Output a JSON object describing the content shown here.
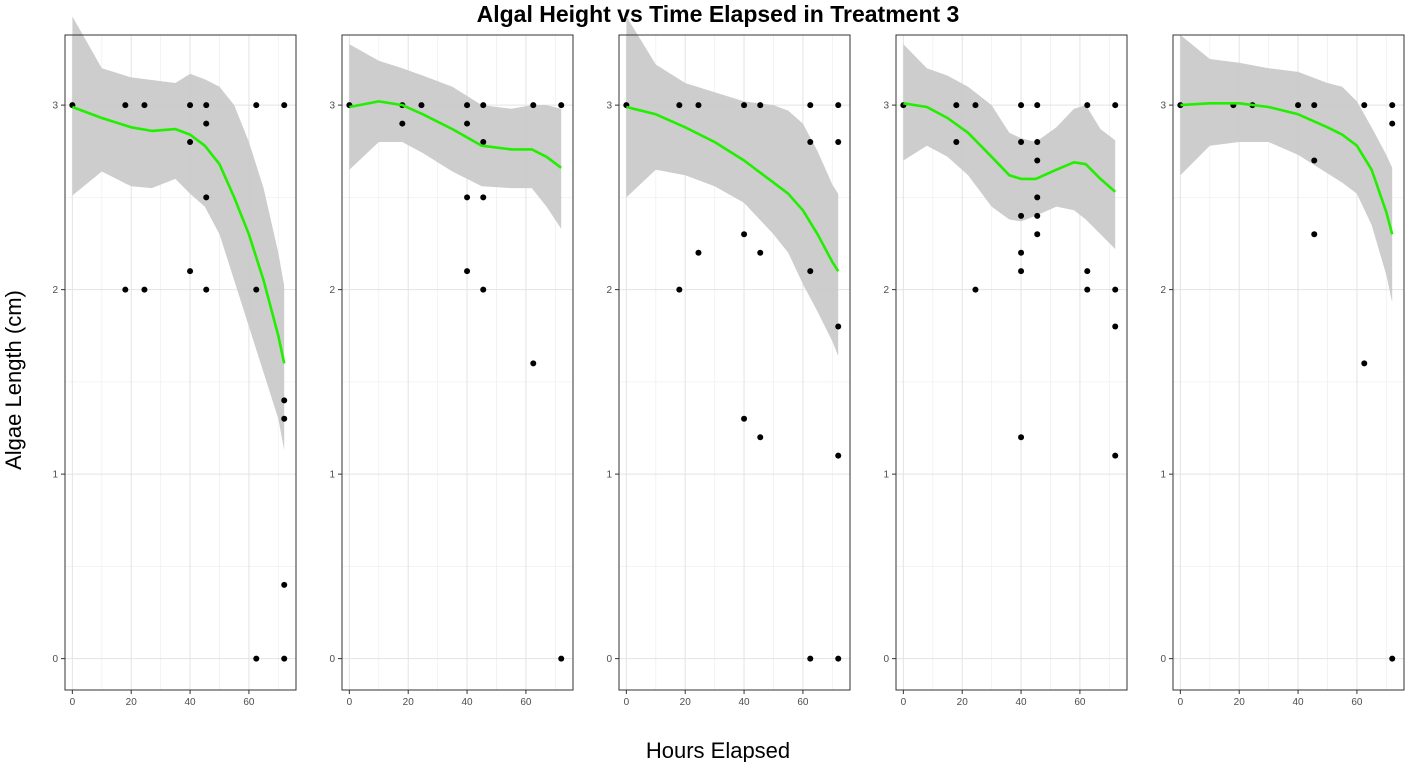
{
  "chart_data": {
    "type": "scatter",
    "title": "Algal Height vs Time Elapsed in Treatment 3",
    "xlabel": "Hours Elapsed",
    "ylabel": "Algae Length (cm)",
    "xlim": [
      -2.5,
      76
    ],
    "ylim": [
      -0.17,
      3.38
    ],
    "x_ticks": [
      0,
      20,
      40,
      60
    ],
    "y_ticks": [
      0,
      1,
      2,
      3
    ],
    "grid": true,
    "smooth_color": "#22ee00",
    "band_color": "#c8c8c8",
    "point_color": "#000000",
    "panels": [
      {
        "points": [
          [
            0,
            3
          ],
          [
            18,
            3
          ],
          [
            18,
            2
          ],
          [
            24.5,
            3
          ],
          [
            24.5,
            2
          ],
          [
            40,
            3
          ],
          [
            40,
            2.8
          ],
          [
            40,
            2.1
          ],
          [
            45.5,
            3
          ],
          [
            45.5,
            2.9
          ],
          [
            45.5,
            2.5
          ],
          [
            45.5,
            2
          ],
          [
            62.5,
            3
          ],
          [
            62.5,
            2
          ],
          [
            62.5,
            0
          ],
          [
            72,
            3
          ],
          [
            72,
            1.4
          ],
          [
            72,
            1.3
          ],
          [
            72,
            0.4
          ],
          [
            72,
            0
          ]
        ],
        "smooth": [
          [
            0,
            2.99
          ],
          [
            10,
            2.93
          ],
          [
            20,
            2.88
          ],
          [
            27,
            2.86
          ],
          [
            35,
            2.87
          ],
          [
            40,
            2.84
          ],
          [
            45,
            2.78
          ],
          [
            50,
            2.68
          ],
          [
            55,
            2.5
          ],
          [
            60,
            2.3
          ],
          [
            65,
            2.05
          ],
          [
            70,
            1.75
          ],
          [
            72,
            1.6
          ]
        ],
        "band_upper": [
          [
            0,
            3.48
          ],
          [
            10,
            3.2
          ],
          [
            20,
            3.15
          ],
          [
            30,
            3.13
          ],
          [
            35,
            3.12
          ],
          [
            40,
            3.17
          ],
          [
            45,
            3.14
          ],
          [
            50,
            3.1
          ],
          [
            55,
            3.0
          ],
          [
            60,
            2.8
          ],
          [
            65,
            2.55
          ],
          [
            70,
            2.2
          ],
          [
            72,
            2.02
          ]
        ],
        "band_lower": [
          [
            0,
            2.51
          ],
          [
            10,
            2.64
          ],
          [
            20,
            2.56
          ],
          [
            27,
            2.55
          ],
          [
            35,
            2.6
          ],
          [
            40,
            2.52
          ],
          [
            45,
            2.45
          ],
          [
            50,
            2.3
          ],
          [
            55,
            2.05
          ],
          [
            60,
            1.8
          ],
          [
            65,
            1.55
          ],
          [
            70,
            1.3
          ],
          [
            72,
            1.13
          ]
        ]
      },
      {
        "points": [
          [
            0,
            3
          ],
          [
            18,
            3
          ],
          [
            18,
            2.9
          ],
          [
            24.5,
            3
          ],
          [
            40,
            3
          ],
          [
            40,
            2.9
          ],
          [
            40,
            2.5
          ],
          [
            40,
            2.1
          ],
          [
            45.5,
            3
          ],
          [
            45.5,
            2.8
          ],
          [
            45.5,
            2.5
          ],
          [
            45.5,
            2
          ],
          [
            62.5,
            3
          ],
          [
            62.5,
            1.6
          ],
          [
            72,
            3
          ],
          [
            72,
            0
          ]
        ],
        "smooth": [
          [
            0,
            2.99
          ],
          [
            10,
            3.02
          ],
          [
            18,
            3.0
          ],
          [
            25,
            2.95
          ],
          [
            35,
            2.87
          ],
          [
            45,
            2.78
          ],
          [
            55,
            2.76
          ],
          [
            62,
            2.76
          ],
          [
            67,
            2.72
          ],
          [
            72,
            2.66
          ]
        ],
        "band_upper": [
          [
            0,
            3.33
          ],
          [
            10,
            3.24
          ],
          [
            18,
            3.2
          ],
          [
            25,
            3.16
          ],
          [
            35,
            3.1
          ],
          [
            45,
            3.0
          ],
          [
            55,
            2.98
          ],
          [
            62,
            3.0
          ],
          [
            67,
            3.0
          ],
          [
            72,
            2.98
          ]
        ],
        "band_lower": [
          [
            0,
            2.65
          ],
          [
            10,
            2.8
          ],
          [
            18,
            2.8
          ],
          [
            25,
            2.74
          ],
          [
            35,
            2.64
          ],
          [
            45,
            2.56
          ],
          [
            55,
            2.55
          ],
          [
            62,
            2.55
          ],
          [
            67,
            2.45
          ],
          [
            72,
            2.33
          ]
        ]
      },
      {
        "points": [
          [
            0,
            3
          ],
          [
            18,
            3
          ],
          [
            18,
            2
          ],
          [
            24.5,
            3
          ],
          [
            24.5,
            2.2
          ],
          [
            40,
            3
          ],
          [
            40,
            2.3
          ],
          [
            40,
            1.3
          ],
          [
            45.5,
            3
          ],
          [
            45.5,
            2.2
          ],
          [
            45.5,
            1.2
          ],
          [
            62.5,
            3
          ],
          [
            62.5,
            2.8
          ],
          [
            62.5,
            2.1
          ],
          [
            62.5,
            0
          ],
          [
            72,
            3
          ],
          [
            72,
            2.8
          ],
          [
            72,
            1.8
          ],
          [
            72,
            1.1
          ],
          [
            72,
            0
          ]
        ],
        "smooth": [
          [
            0,
            2.99
          ],
          [
            10,
            2.95
          ],
          [
            20,
            2.88
          ],
          [
            30,
            2.8
          ],
          [
            40,
            2.7
          ],
          [
            50,
            2.58
          ],
          [
            55,
            2.52
          ],
          [
            60,
            2.43
          ],
          [
            65,
            2.3
          ],
          [
            70,
            2.15
          ],
          [
            72,
            2.1
          ]
        ],
        "band_upper": [
          [
            0,
            3.48
          ],
          [
            10,
            3.22
          ],
          [
            20,
            3.12
          ],
          [
            30,
            3.07
          ],
          [
            40,
            3.02
          ],
          [
            50,
            3.0
          ],
          [
            55,
            2.97
          ],
          [
            60,
            2.9
          ],
          [
            65,
            2.75
          ],
          [
            70,
            2.57
          ],
          [
            72,
            2.52
          ]
        ],
        "band_lower": [
          [
            0,
            2.5
          ],
          [
            10,
            2.65
          ],
          [
            20,
            2.62
          ],
          [
            30,
            2.56
          ],
          [
            40,
            2.47
          ],
          [
            50,
            2.3
          ],
          [
            55,
            2.2
          ],
          [
            60,
            2.03
          ],
          [
            65,
            1.88
          ],
          [
            70,
            1.72
          ],
          [
            72,
            1.64
          ]
        ]
      },
      {
        "points": [
          [
            0,
            3
          ],
          [
            18,
            3
          ],
          [
            18,
            2.8
          ],
          [
            24.5,
            3
          ],
          [
            24.5,
            2
          ],
          [
            40,
            3
          ],
          [
            40,
            2.8
          ],
          [
            40,
            2.4
          ],
          [
            40,
            2.2
          ],
          [
            40,
            2.1
          ],
          [
            40,
            1.2
          ],
          [
            45.5,
            3
          ],
          [
            45.5,
            2.8
          ],
          [
            45.5,
            2.7
          ],
          [
            45.5,
            2.5
          ],
          [
            45.5,
            2.4
          ],
          [
            45.5,
            2.3
          ],
          [
            62.5,
            3
          ],
          [
            62.5,
            2.1
          ],
          [
            62.5,
            2
          ],
          [
            72,
            3
          ],
          [
            72,
            2
          ],
          [
            72,
            1.8
          ],
          [
            72,
            1.1
          ]
        ],
        "smooth": [
          [
            0,
            3.01
          ],
          [
            8,
            2.99
          ],
          [
            15,
            2.93
          ],
          [
            22,
            2.85
          ],
          [
            30,
            2.72
          ],
          [
            36,
            2.62
          ],
          [
            40,
            2.6
          ],
          [
            45,
            2.6
          ],
          [
            52,
            2.65
          ],
          [
            58,
            2.69
          ],
          [
            62,
            2.68
          ],
          [
            67,
            2.6
          ],
          [
            72,
            2.53
          ]
        ],
        "band_upper": [
          [
            0,
            3.33
          ],
          [
            8,
            3.2
          ],
          [
            15,
            3.16
          ],
          [
            22,
            3.1
          ],
          [
            30,
            3.0
          ],
          [
            36,
            2.85
          ],
          [
            40,
            2.82
          ],
          [
            45,
            2.8
          ],
          [
            52,
            2.88
          ],
          [
            58,
            2.98
          ],
          [
            62,
            3.0
          ],
          [
            67,
            2.87
          ],
          [
            72,
            2.81
          ]
        ],
        "band_lower": [
          [
            0,
            2.7
          ],
          [
            8,
            2.78
          ],
          [
            15,
            2.72
          ],
          [
            22,
            2.62
          ],
          [
            30,
            2.45
          ],
          [
            36,
            2.38
          ],
          [
            40,
            2.37
          ],
          [
            45,
            2.4
          ],
          [
            52,
            2.45
          ],
          [
            58,
            2.43
          ],
          [
            62,
            2.38
          ],
          [
            67,
            2.3
          ],
          [
            72,
            2.22
          ]
        ]
      },
      {
        "points": [
          [
            0,
            3
          ],
          [
            18,
            3
          ],
          [
            24.5,
            3
          ],
          [
            40,
            3
          ],
          [
            45.5,
            3
          ],
          [
            45.5,
            2.7
          ],
          [
            45.5,
            2.3
          ],
          [
            62.5,
            3
          ],
          [
            62.5,
            1.6
          ],
          [
            72,
            3
          ],
          [
            72,
            2.9
          ],
          [
            72,
            0
          ]
        ],
        "smooth": [
          [
            0,
            3.0
          ],
          [
            10,
            3.01
          ],
          [
            20,
            3.01
          ],
          [
            30,
            2.99
          ],
          [
            40,
            2.95
          ],
          [
            50,
            2.88
          ],
          [
            55,
            2.84
          ],
          [
            60,
            2.78
          ],
          [
            65,
            2.65
          ],
          [
            70,
            2.42
          ],
          [
            72,
            2.3
          ]
        ],
        "band_upper": [
          [
            0,
            3.38
          ],
          [
            10,
            3.25
          ],
          [
            20,
            3.23
          ],
          [
            30,
            3.2
          ],
          [
            40,
            3.18
          ],
          [
            50,
            3.12
          ],
          [
            55,
            3.1
          ],
          [
            60,
            3.02
          ],
          [
            65,
            2.88
          ],
          [
            70,
            2.73
          ],
          [
            72,
            2.66
          ]
        ],
        "band_lower": [
          [
            0,
            2.62
          ],
          [
            10,
            2.78
          ],
          [
            20,
            2.8
          ],
          [
            30,
            2.8
          ],
          [
            40,
            2.73
          ],
          [
            50,
            2.63
          ],
          [
            55,
            2.58
          ],
          [
            60,
            2.52
          ],
          [
            65,
            2.35
          ],
          [
            70,
            2.08
          ],
          [
            72,
            1.93
          ]
        ]
      }
    ]
  }
}
